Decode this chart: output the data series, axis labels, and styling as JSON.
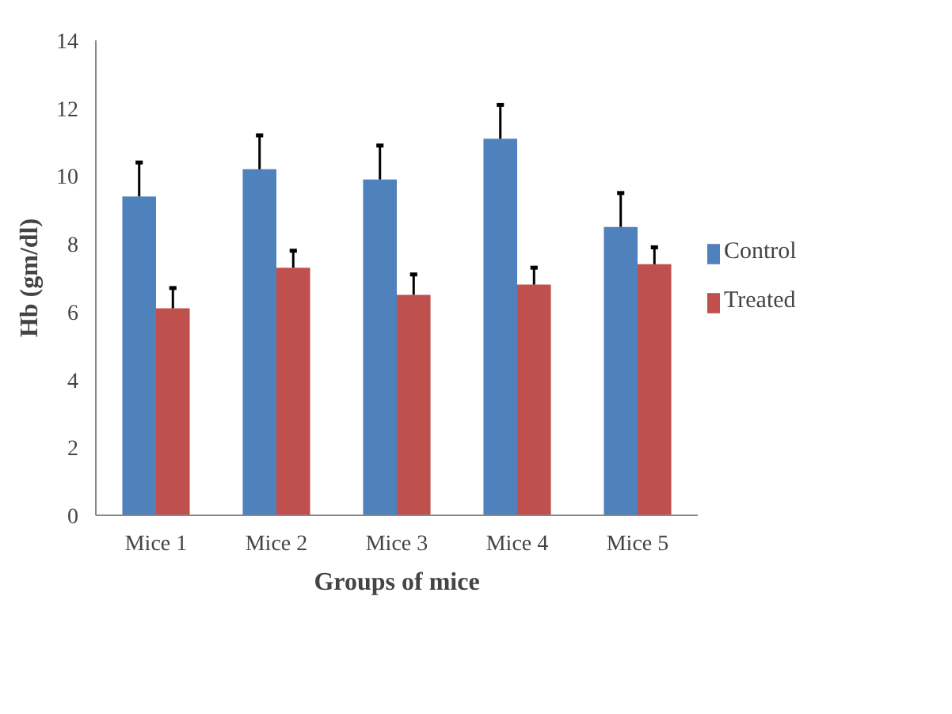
{
  "chart_data": {
    "type": "bar",
    "xlabel": "Groups of mice",
    "ylabel": "Hb (gm/dl)",
    "categories": [
      "Mice 1",
      "Mice 2",
      "Mice 3",
      "Mice 4",
      "Mice 5"
    ],
    "series": [
      {
        "name": "Control",
        "color": "#4f81bd",
        "values": [
          9.4,
          10.2,
          9.9,
          11.1,
          8.5
        ],
        "errors": [
          [
            9.4,
            10.4
          ],
          [
            10.2,
            11.2
          ],
          [
            9.9,
            10.9
          ],
          [
            11.1,
            12.1
          ],
          [
            8.5,
            9.5
          ]
        ]
      },
      {
        "name": "Treated",
        "color": "#c0504d",
        "values": [
          6.1,
          7.3,
          6.5,
          6.8,
          7.4
        ],
        "errors": [
          [
            6.1,
            6.7
          ],
          [
            7.3,
            7.8
          ],
          [
            6.5,
            7.1
          ],
          [
            6.8,
            7.3
          ],
          [
            7.4,
            7.9
          ]
        ]
      }
    ],
    "ylim": [
      0,
      14
    ],
    "yticks": [
      0,
      2,
      4,
      6,
      8,
      10,
      12,
      14
    ],
    "grid": false,
    "legend": "right"
  }
}
